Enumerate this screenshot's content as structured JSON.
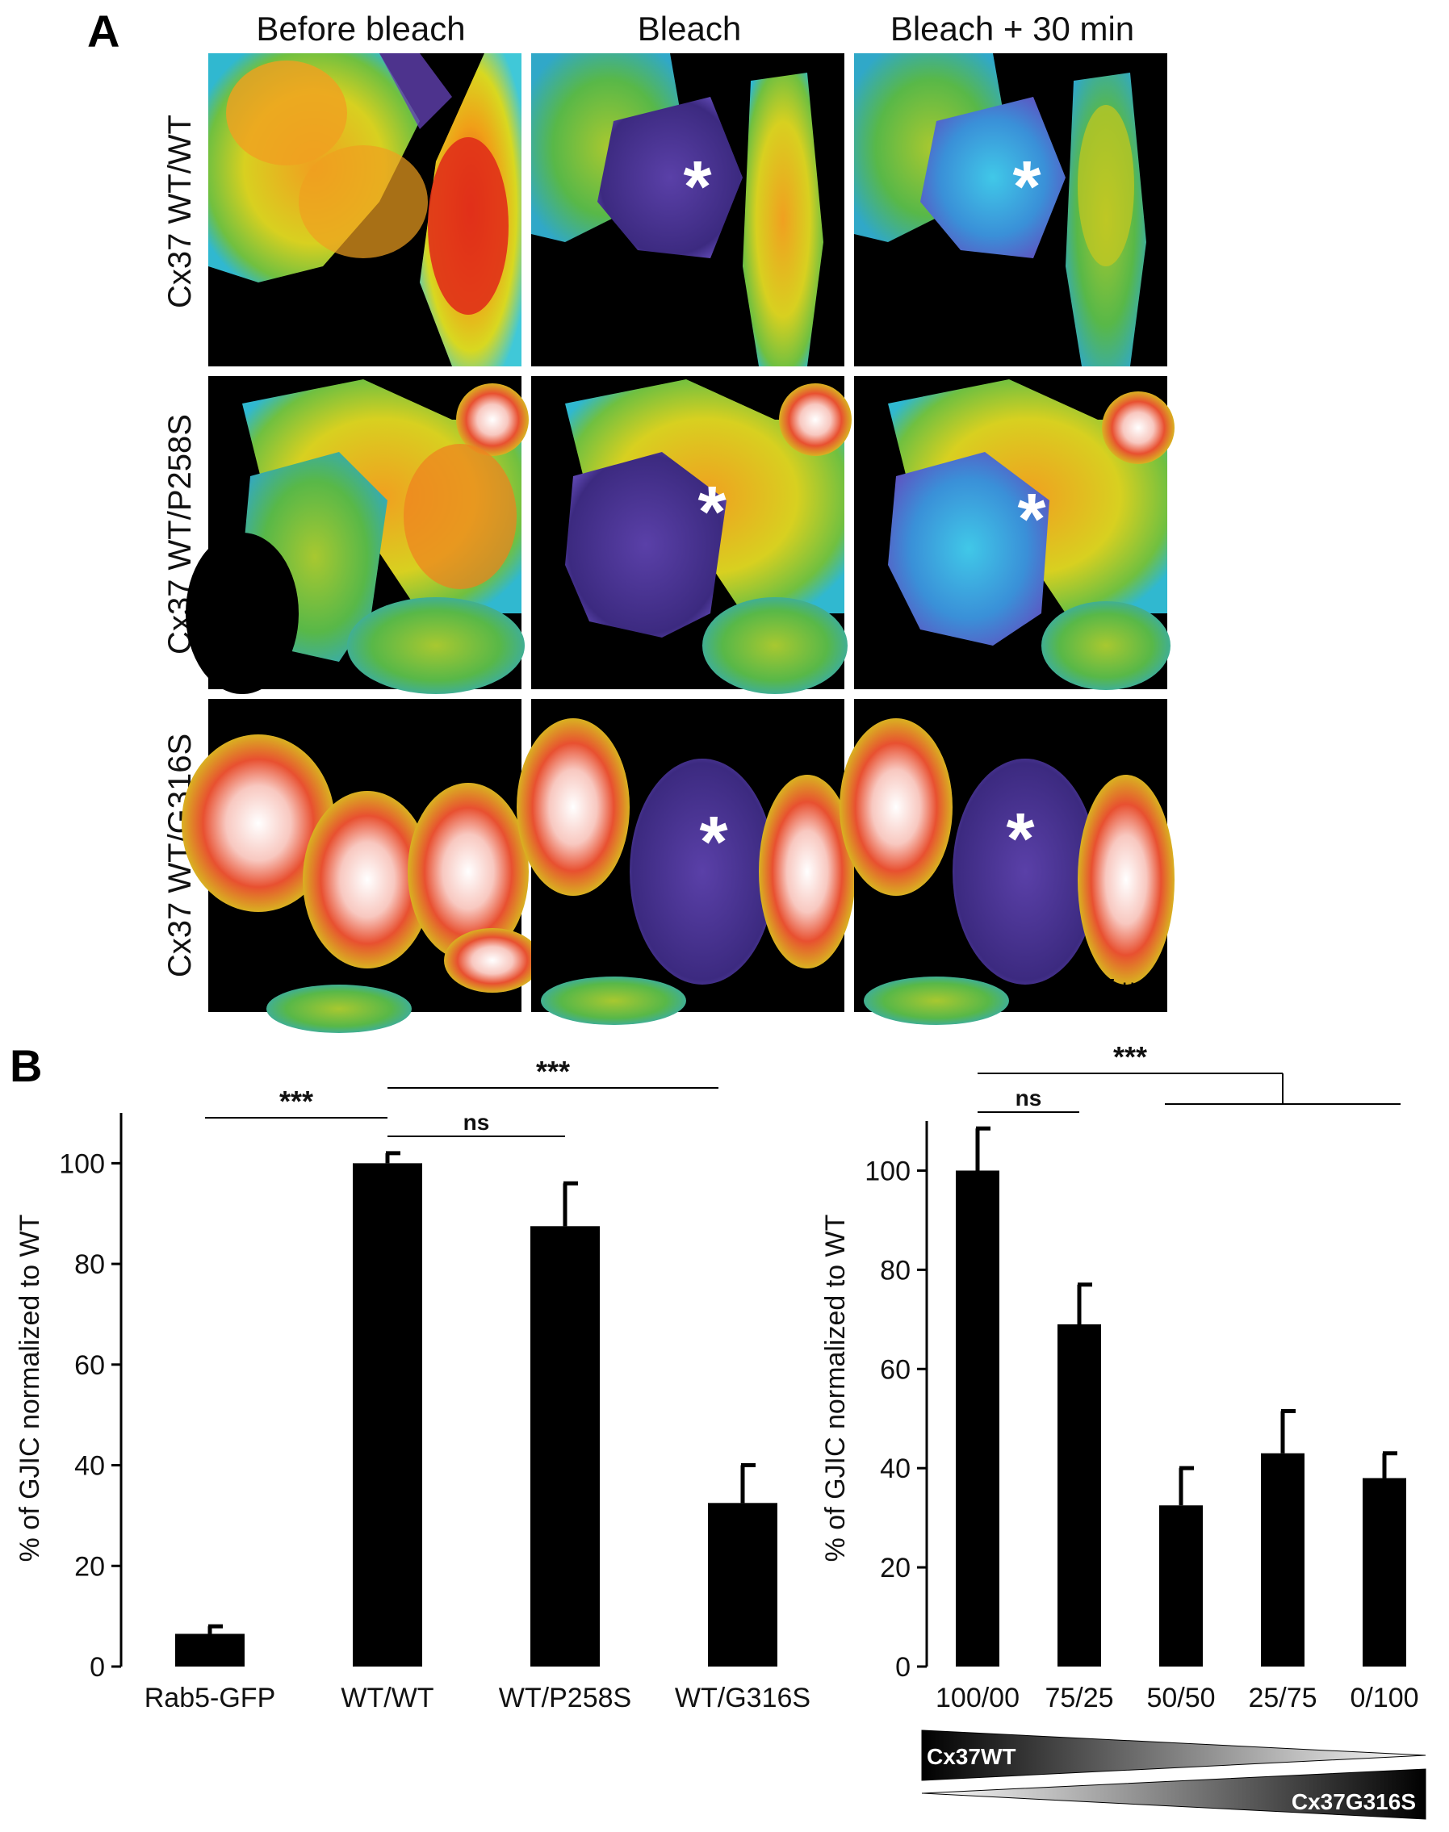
{
  "panel_a": {
    "letter": "A",
    "columns": [
      "Before bleach",
      "Bleach",
      "Bleach + 30 min"
    ],
    "rows": [
      "Cx37 WT/WT",
      "Cx37 WT/P258S",
      "Cx37 WT/G316S"
    ],
    "asterisk": "*",
    "scale_bar": "5 μm"
  },
  "panel_b": {
    "letter": "B"
  },
  "chart_data": [
    {
      "type": "bar",
      "ylabel": "% of GJIC normalized to WT",
      "xlabel": "",
      "ylim": [
        0,
        110
      ],
      "yticks": [
        0,
        20,
        40,
        60,
        80,
        100
      ],
      "categories": [
        "Rab5-GFP",
        "WT/WT",
        "WT/P258S",
        "WT/G316S"
      ],
      "values": [
        6.5,
        100,
        87.5,
        32.5
      ],
      "errors": [
        1.5,
        2,
        8.5,
        7.5
      ],
      "significance": [
        {
          "label": "***",
          "from": 0,
          "to": 1
        },
        {
          "label": "ns",
          "from": 1,
          "to": 2
        },
        {
          "label": "***",
          "from": 1,
          "to": 3
        }
      ]
    },
    {
      "type": "bar",
      "ylabel": "% of GJIC normalized to WT",
      "xlabel": "",
      "ylim": [
        0,
        110
      ],
      "yticks": [
        0,
        20,
        40,
        60,
        80,
        100
      ],
      "categories": [
        "100/00",
        "75/25",
        "50/50",
        "25/75",
        "0/100"
      ],
      "values": [
        100,
        69,
        32.5,
        43,
        38
      ],
      "errors": [
        8.5,
        8,
        7.5,
        8.5,
        5
      ],
      "significance": [
        {
          "label": "ns",
          "from": 0,
          "to": 1
        },
        {
          "label": "***",
          "from": 0,
          "to": [
            2,
            4
          ]
        }
      ],
      "gradient_labels": [
        "Cx37WT",
        "Cx37G316S"
      ]
    }
  ]
}
